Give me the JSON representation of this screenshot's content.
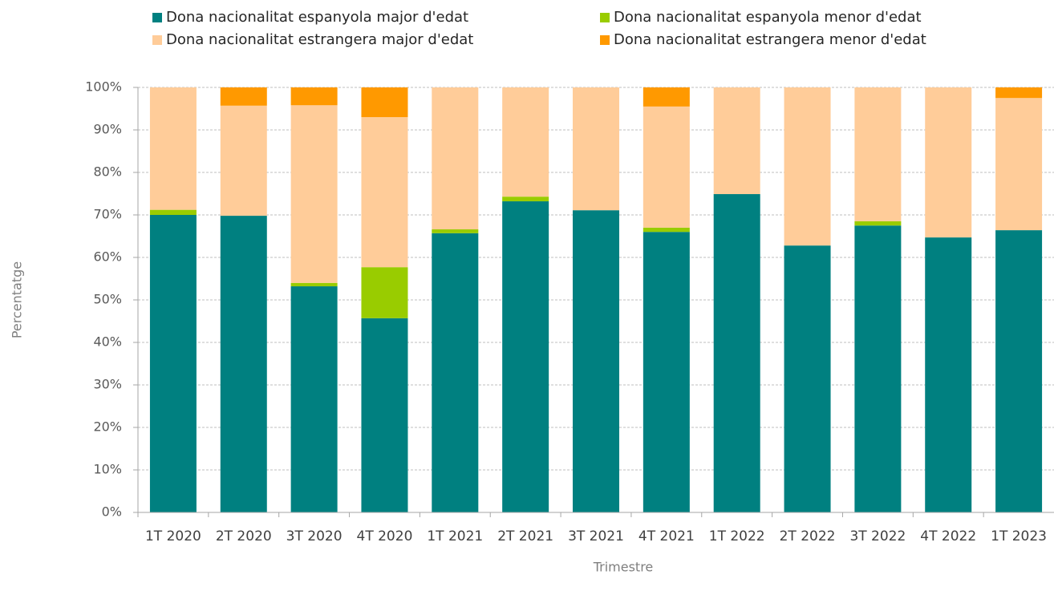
{
  "chart_data": {
    "type": "stacked_bar",
    "x_label": "Trimestre",
    "y_label": "Percentatge",
    "categories": [
      "1T 2020",
      "2T 2020",
      "3T 2020",
      "4T 2020",
      "1T 2021",
      "2T 2021",
      "3T 2021",
      "4T 2021",
      "1T 2022",
      "2T 2022",
      "3T 2022",
      "4T 2022",
      "1T 2023"
    ],
    "series": [
      {
        "name": "Dona nacionalitat espanyola major d'edat",
        "color": "#008080",
        "values": [
          70,
          69.8,
          53.2,
          45.7,
          65.7,
          73.2,
          71.1,
          66,
          74.9,
          62.8,
          67.5,
          64.7,
          66.4
        ]
      },
      {
        "name": "Dona nacionalitat espanyola menor d'edat",
        "color": "#99cc00",
        "values": [
          1.2,
          0,
          0.8,
          12,
          0.9,
          1.1,
          0,
          1,
          0,
          0,
          1,
          0,
          0
        ]
      },
      {
        "name": "Dona nacionalitat estrangera major d'edat",
        "color": "#ffcc99",
        "values": [
          28.8,
          25.9,
          41.8,
          35.3,
          33.4,
          25.7,
          28.9,
          28.5,
          25.1,
          37.2,
          31.5,
          35.3,
          31.1
        ]
      },
      {
        "name": "Dona nacionalitat estrangera menor d'edat",
        "color": "#ff9900",
        "values": [
          0,
          4.3,
          4.2,
          7,
          0,
          0,
          0,
          4.5,
          0,
          0,
          0,
          0,
          2.5
        ]
      }
    ],
    "ylim": [
      0,
      100
    ],
    "yticks": [
      {
        "value": 0,
        "label": "0%"
      },
      {
        "value": 10,
        "label": "10%"
      },
      {
        "value": 20,
        "label": "20%"
      },
      {
        "value": 30,
        "label": "30%"
      },
      {
        "value": 40,
        "label": "40%"
      },
      {
        "value": 50,
        "label": "50%"
      },
      {
        "value": 60,
        "label": "60%"
      },
      {
        "value": 70,
        "label": "70%"
      },
      {
        "value": 80,
        "label": "80%"
      },
      {
        "value": 90,
        "label": "90%"
      },
      {
        "value": 100,
        "label": "100%"
      }
    ],
    "grid": true,
    "legend": "top"
  }
}
